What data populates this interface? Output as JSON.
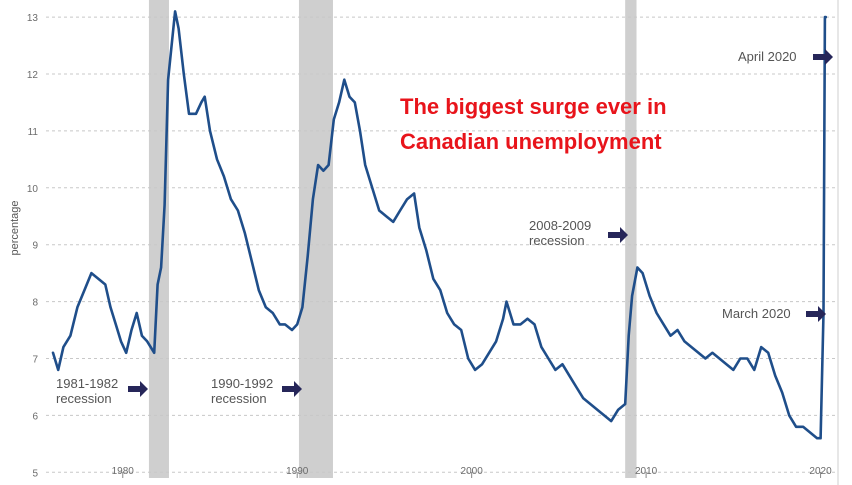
{
  "chart_data": {
    "type": "line",
    "title_lines": [
      "The biggest surge ever in",
      "Canadian unemployment"
    ],
    "title_color": "#e8141b",
    "ylabel": "percentage",
    "xlim": [
      1975.6,
      2021.0
    ],
    "ylim": [
      4.9,
      13.3
    ],
    "x_ticks": [
      1980,
      1990,
      2000,
      2010,
      2020
    ],
    "y_ticks": [
      5,
      6,
      7,
      8,
      9,
      10,
      11,
      12,
      13
    ],
    "grid": "horizontal-dashed",
    "line_color": "#1f4e8a",
    "recession_color": "#cfcfcf",
    "arrow_color": "#262659",
    "recessions": [
      {
        "start": 1981.5,
        "end": 1982.65,
        "label_lines": [
          "1981-1982",
          "recession"
        ]
      },
      {
        "start": 1990.1,
        "end": 1992.05,
        "label_lines": [
          "1990-1992",
          "recession"
        ]
      },
      {
        "start": 2008.8,
        "end": 2009.45,
        "label_lines": [
          "2008-2009",
          "recession"
        ]
      }
    ],
    "annotations": [
      {
        "text": "April 2020",
        "point": [
          2020.25,
          13.0
        ]
      },
      {
        "text": "March 2020",
        "point": [
          2020.17,
          7.8
        ]
      }
    ],
    "series": [
      {
        "x": [
          1976.0,
          1976.3,
          1976.6,
          1977.0,
          1977.4,
          1977.8,
          1978.2,
          1978.6,
          1979.0,
          1979.3,
          1979.6,
          1979.9,
          1980.2,
          1980.5,
          1980.8,
          1981.1,
          1981.4,
          1981.8,
          1982.0,
          1982.2,
          1982.4,
          1982.6,
          1982.8,
          1983.0,
          1983.2,
          1983.5,
          1983.8,
          1984.2,
          1984.5,
          1984.7,
          1985.0,
          1985.4,
          1985.8,
          1986.2,
          1986.6,
          1987.0,
          1987.4,
          1987.8,
          1988.2,
          1988.6,
          1989.0,
          1989.3,
          1989.7,
          1990.0,
          1990.3,
          1990.6,
          1990.9,
          1991.2,
          1991.5,
          1991.8,
          1992.1,
          1992.4,
          1992.7,
          1993.0,
          1993.3,
          1993.6,
          1993.9,
          1994.3,
          1994.7,
          1995.1,
          1995.5,
          1995.9,
          1996.3,
          1996.7,
          1997.0,
          1997.4,
          1997.8,
          1998.2,
          1998.6,
          1999.0,
          1999.4,
          1999.8,
          2000.2,
          2000.6,
          2001.0,
          2001.4,
          2001.8,
          2002.0,
          2002.4,
          2002.8,
          2003.2,
          2003.6,
          2004.0,
          2004.4,
          2004.8,
          2005.2,
          2005.6,
          2006.0,
          2006.4,
          2006.8,
          2007.2,
          2007.6,
          2008.0,
          2008.4,
          2008.8,
          2009.0,
          2009.2,
          2009.5,
          2009.8,
          2010.2,
          2010.6,
          2011.0,
          2011.4,
          2011.8,
          2012.2,
          2012.6,
          2013.0,
          2013.4,
          2013.8,
          2014.2,
          2014.6,
          2015.0,
          2015.4,
          2015.8,
          2016.2,
          2016.6,
          2017.0,
          2017.4,
          2017.8,
          2018.2,
          2018.6,
          2019.0,
          2019.4,
          2019.8,
          2020.0,
          2020.17,
          2020.25,
          2020.3
        ],
        "y": [
          7.1,
          6.8,
          7.2,
          7.4,
          7.9,
          8.2,
          8.5,
          8.4,
          8.3,
          7.9,
          7.6,
          7.3,
          7.1,
          7.5,
          7.8,
          7.4,
          7.3,
          7.1,
          8.3,
          8.6,
          9.7,
          11.9,
          12.5,
          13.1,
          12.8,
          12.0,
          11.3,
          11.3,
          11.5,
          11.6,
          11.0,
          10.5,
          10.2,
          9.8,
          9.6,
          9.2,
          8.7,
          8.2,
          7.9,
          7.8,
          7.6,
          7.6,
          7.5,
          7.6,
          7.9,
          8.8,
          9.8,
          10.4,
          10.3,
          10.4,
          11.2,
          11.5,
          11.9,
          11.6,
          11.5,
          11.0,
          10.4,
          10.0,
          9.6,
          9.5,
          9.4,
          9.6,
          9.8,
          9.9,
          9.3,
          8.9,
          8.4,
          8.2,
          7.8,
          7.6,
          7.5,
          7.0,
          6.8,
          6.9,
          7.1,
          7.3,
          7.7,
          8.0,
          7.6,
          7.6,
          7.7,
          7.6,
          7.2,
          7.0,
          6.8,
          6.9,
          6.7,
          6.5,
          6.3,
          6.2,
          6.1,
          6.0,
          5.9,
          6.1,
          6.2,
          7.4,
          8.1,
          8.6,
          8.5,
          8.1,
          7.8,
          7.6,
          7.4,
          7.5,
          7.3,
          7.2,
          7.1,
          7.0,
          7.1,
          7.0,
          6.9,
          6.8,
          7.0,
          7.0,
          6.8,
          7.2,
          7.1,
          6.7,
          6.4,
          6.0,
          5.8,
          5.8,
          5.7,
          5.6,
          5.6,
          7.8,
          13.0,
          13.0
        ]
      }
    ]
  }
}
